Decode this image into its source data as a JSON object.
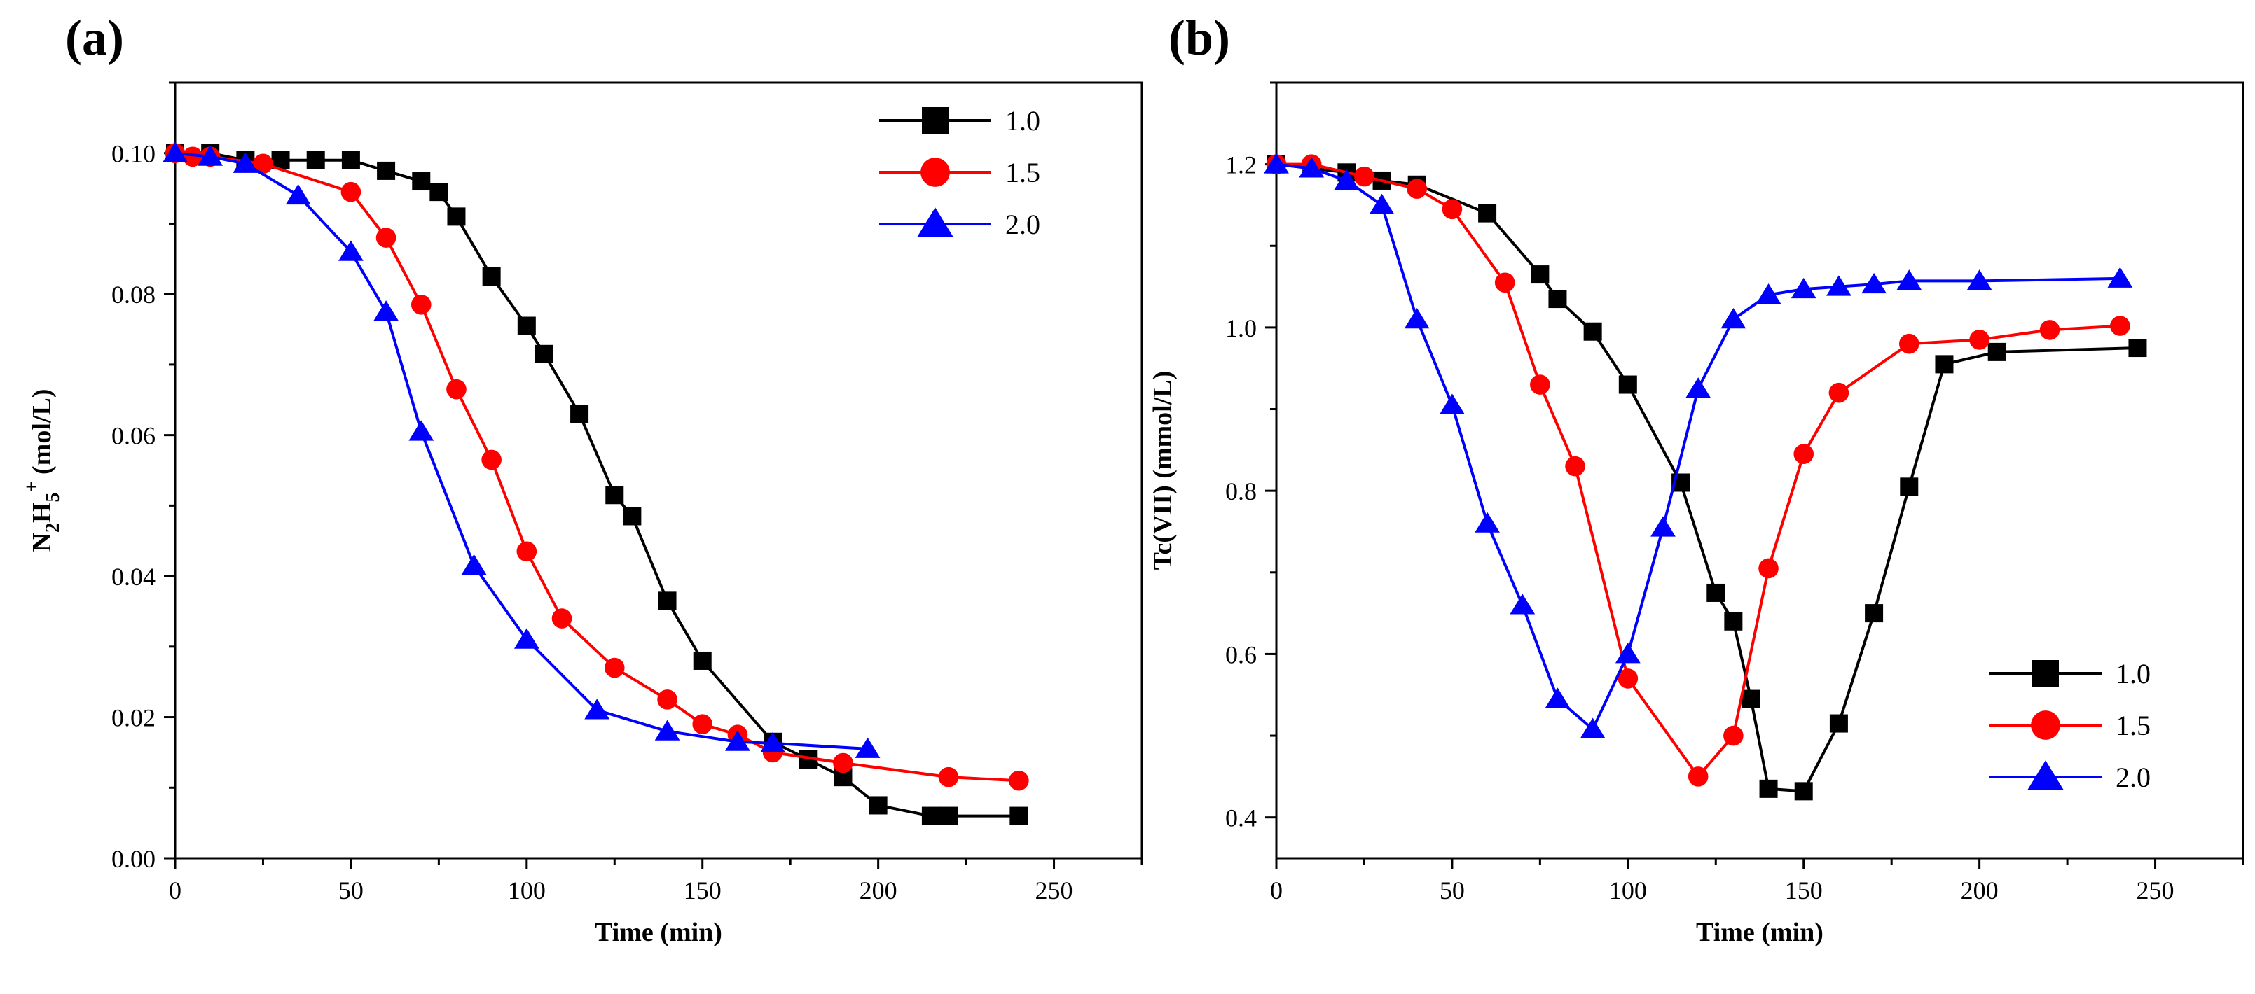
{
  "figure": {
    "panels": [
      "(a)",
      "(b)"
    ]
  },
  "chart_data": [
    {
      "type": "line",
      "panel_label": "(a)",
      "xlabel": "Time (min)",
      "ylabel": {
        "base": "N",
        "sub1": "2",
        "base2": "H",
        "sub2": "5",
        "sup": "+",
        "unit": " (mol/L)"
      },
      "xlim": [
        0,
        275
      ],
      "ylim": [
        0,
        0.11
      ],
      "xticks": [
        0,
        50,
        100,
        150,
        200,
        250
      ],
      "yticks": [
        0.0,
        0.02,
        0.04,
        0.06,
        0.08,
        0.1
      ],
      "ytick_labels": [
        "0.00",
        "0.02",
        "0.04",
        "0.06",
        "0.08",
        "0.10"
      ],
      "legend_position": "top-right",
      "series": [
        {
          "name": "1.0",
          "marker": "square",
          "color": "#000000",
          "x": [
            0,
            10,
            20,
            30,
            40,
            50,
            60,
            70,
            75,
            80,
            90,
            100,
            105,
            115,
            125,
            130,
            140,
            150,
            170,
            180,
            190,
            200,
            215,
            220,
            240
          ],
          "y": [
            0.1,
            0.1,
            0.099,
            0.099,
            0.099,
            0.099,
            0.0975,
            0.096,
            0.0945,
            0.091,
            0.0825,
            0.0755,
            0.0715,
            0.063,
            0.0515,
            0.0485,
            0.0365,
            0.028,
            0.0165,
            0.014,
            0.0115,
            0.0075,
            0.006,
            0.006,
            0.006
          ]
        },
        {
          "name": "1.5",
          "marker": "circle",
          "color": "#ff0000",
          "x": [
            0,
            5,
            10,
            25,
            50,
            60,
            70,
            80,
            90,
            100,
            110,
            125,
            140,
            150,
            160,
            170,
            190,
            220,
            240
          ],
          "y": [
            0.1,
            0.0995,
            0.0995,
            0.0985,
            0.0945,
            0.088,
            0.0785,
            0.0665,
            0.0565,
            0.0435,
            0.034,
            0.027,
            0.0225,
            0.019,
            0.0175,
            0.015,
            0.0135,
            0.0115,
            0.011
          ]
        },
        {
          "name": "2.0",
          "marker": "triangle",
          "color": "#0000ff",
          "x": [
            0,
            10,
            20,
            35,
            50,
            60,
            70,
            85,
            100,
            120,
            140,
            160,
            170,
            197
          ],
          "y": [
            0.1,
            0.0995,
            0.0985,
            0.094,
            0.086,
            0.0775,
            0.0605,
            0.0415,
            0.031,
            0.021,
            0.018,
            0.0165,
            0.0163,
            0.0155
          ]
        }
      ]
    },
    {
      "type": "line",
      "panel_label": "(b)",
      "xlabel": "Time (min)",
      "ylabel": "Tc(VII) (mmol/L)",
      "xlim": [
        0,
        275
      ],
      "ylim": [
        0.35,
        1.3
      ],
      "xticks": [
        0,
        50,
        100,
        150,
        200,
        250
      ],
      "yticks": [
        0.4,
        0.6,
        0.8,
        1.0,
        1.2
      ],
      "ytick_labels": [
        "0.4",
        "0.6",
        "0.8",
        "1.0",
        "1.2"
      ],
      "legend_position": "bottom-right",
      "series": [
        {
          "name": "1.0",
          "marker": "square",
          "color": "#000000",
          "x": [
            0,
            10,
            20,
            30,
            40,
            60,
            75,
            80,
            90,
            100,
            115,
            125,
            130,
            135,
            140,
            150,
            160,
            170,
            180,
            190,
            205,
            245
          ],
          "y": [
            1.2,
            1.195,
            1.19,
            1.18,
            1.175,
            1.14,
            1.065,
            1.035,
            0.995,
            0.93,
            0.81,
            0.675,
            0.64,
            0.545,
            0.435,
            0.432,
            0.515,
            0.65,
            0.805,
            0.955,
            0.97,
            0.975
          ]
        },
        {
          "name": "1.5",
          "marker": "circle",
          "color": "#ff0000",
          "x": [
            0,
            10,
            25,
            40,
            50,
            65,
            75,
            85,
            100,
            120,
            130,
            140,
            150,
            160,
            180,
            200,
            220,
            240
          ],
          "y": [
            1.2,
            1.2,
            1.185,
            1.17,
            1.145,
            1.055,
            0.93,
            0.83,
            0.57,
            0.45,
            0.5,
            0.705,
            0.845,
            0.92,
            0.98,
            0.985,
            0.997,
            1.002
          ]
        },
        {
          "name": "2.0",
          "marker": "triangle",
          "color": "#0000ff",
          "x": [
            0,
            10,
            20,
            30,
            40,
            50,
            60,
            70,
            80,
            90,
            100,
            110,
            120,
            130,
            140,
            150,
            160,
            170,
            180,
            200,
            240
          ],
          "y": [
            1.2,
            1.195,
            1.18,
            1.15,
            1.01,
            0.905,
            0.76,
            0.66,
            0.545,
            0.508,
            0.6,
            0.755,
            0.925,
            1.01,
            1.04,
            1.047,
            1.05,
            1.053,
            1.057,
            1.057,
            1.06
          ]
        }
      ]
    }
  ]
}
